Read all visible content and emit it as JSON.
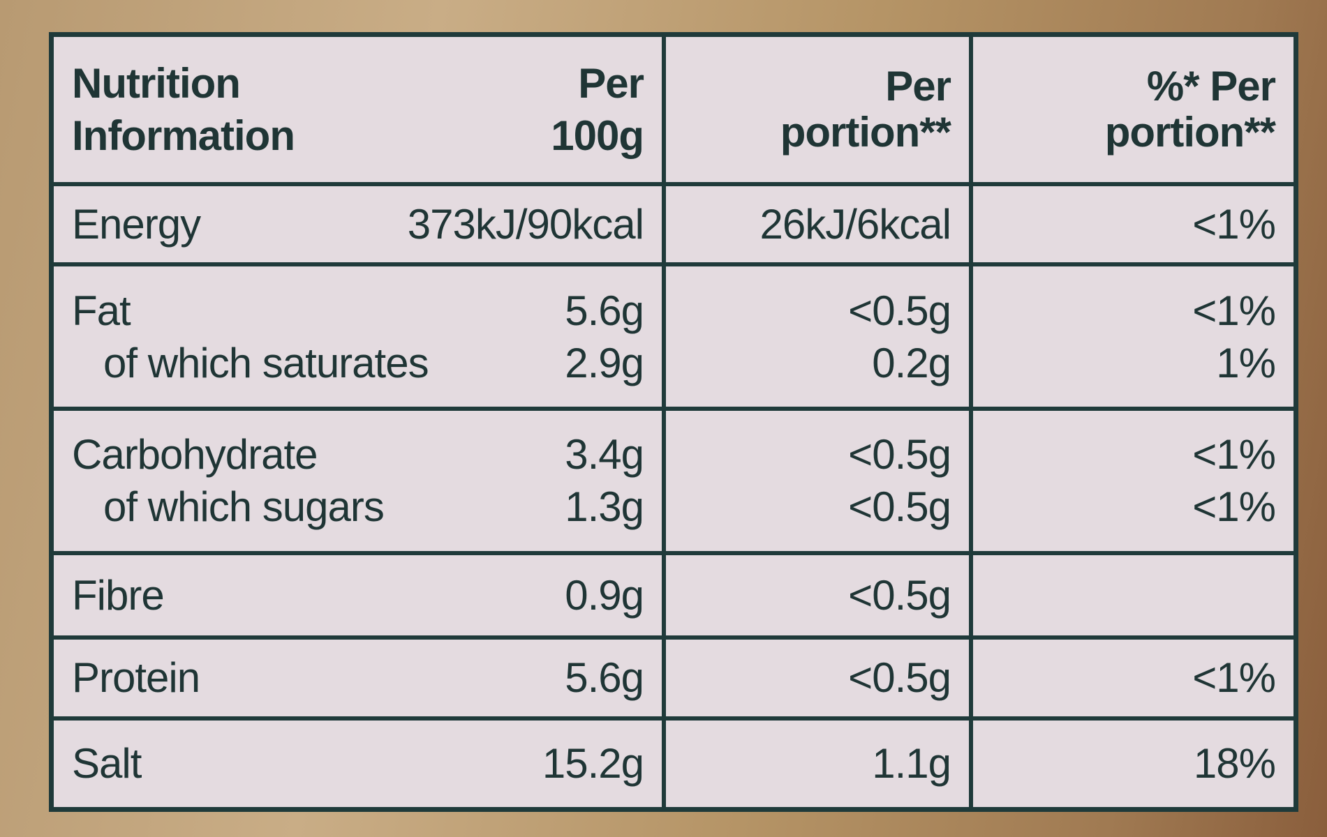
{
  "table": {
    "header": [
      "Nutrition Information",
      "Per 100g",
      "Per portion**",
      "%* Per portion**"
    ],
    "groups": [
      [
        [
          "Energy",
          "373kJ/90kcal",
          "26kJ/6kcal",
          "<1%"
        ]
      ],
      [
        [
          "Fat",
          "5.6g",
          "<0.5g",
          "<1%"
        ],
        [
          "of which saturates",
          "2.9g",
          "0.2g",
          "1%"
        ]
      ],
      [
        [
          "Carbohydrate",
          "3.4g",
          "<0.5g",
          "<1%"
        ],
        [
          "of which sugars",
          "1.3g",
          "<0.5g",
          "<1%"
        ]
      ],
      [
        [
          "Fibre",
          "0.9g",
          "<0.5g",
          null
        ]
      ],
      [
        [
          "Protein",
          "5.6g",
          "<0.5g",
          "<1%"
        ]
      ],
      [
        [
          "Salt",
          "15.2g",
          "1.1g",
          "18%"
        ]
      ]
    ]
  }
}
